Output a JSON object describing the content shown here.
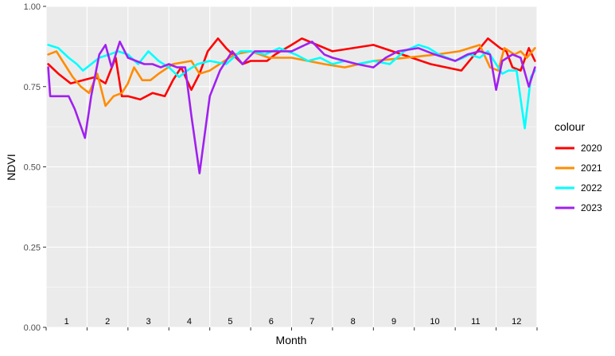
{
  "chart_data": {
    "type": "line",
    "xlabel": "Month",
    "ylabel": "NDVI",
    "ylim": [
      0,
      1
    ],
    "xlim": [
      0,
      12
    ],
    "y_ticks": [
      "0.00",
      "0.25",
      "0.50",
      "0.75",
      "1.00"
    ],
    "y_tick_values": [
      0,
      0.25,
      0.5,
      0.75,
      1.0
    ],
    "month_labels": [
      "1",
      "2",
      "3",
      "4",
      "5",
      "6",
      "7",
      "8",
      "9",
      "10",
      "11",
      "12"
    ],
    "grid": true,
    "legend": {
      "title": "colour",
      "position": "right"
    },
    "series": [
      {
        "name": "2020",
        "color": "#ff0000",
        "x": [
          0.05,
          0.3,
          0.6,
          0.9,
          1.2,
          1.45,
          1.7,
          1.85,
          2.0,
          2.3,
          2.6,
          2.9,
          3.1,
          3.3,
          3.55,
          3.75,
          3.95,
          4.2,
          4.4,
          4.8,
          5.0,
          5.4,
          5.6,
          6.0,
          6.25,
          7.0,
          8.0,
          8.7,
          9.4,
          10.15,
          10.8,
          11.1,
          11.25,
          11.4,
          11.6,
          11.8,
          11.95
        ],
        "y": [
          0.82,
          0.79,
          0.76,
          0.77,
          0.78,
          0.76,
          0.84,
          0.72,
          0.72,
          0.71,
          0.73,
          0.72,
          0.77,
          0.81,
          0.74,
          0.79,
          0.86,
          0.9,
          0.87,
          0.82,
          0.83,
          0.83,
          0.85,
          0.88,
          0.9,
          0.86,
          0.88,
          0.85,
          0.82,
          0.8,
          0.9,
          0.87,
          0.86,
          0.81,
          0.8,
          0.87,
          0.83
        ]
      },
      {
        "name": "2021",
        "color": "#ff8c00",
        "x": [
          0.05,
          0.25,
          0.45,
          0.65,
          0.85,
          1.05,
          1.25,
          1.45,
          1.65,
          1.85,
          2.0,
          2.15,
          2.35,
          2.55,
          2.75,
          3.1,
          3.55,
          3.75,
          4.0,
          4.6,
          5.0,
          5.45,
          6.0,
          6.8,
          7.3,
          8.0,
          8.8,
          9.55,
          10.1,
          10.6,
          10.85,
          11.05,
          11.2,
          11.45,
          11.6,
          11.75,
          11.95
        ],
        "y": [
          0.85,
          0.86,
          0.82,
          0.78,
          0.75,
          0.73,
          0.79,
          0.69,
          0.72,
          0.73,
          0.76,
          0.81,
          0.77,
          0.77,
          0.79,
          0.82,
          0.83,
          0.79,
          0.8,
          0.85,
          0.86,
          0.84,
          0.84,
          0.82,
          0.81,
          0.83,
          0.84,
          0.85,
          0.86,
          0.88,
          0.81,
          0.8,
          0.87,
          0.85,
          0.86,
          0.84,
          0.87
        ]
      },
      {
        "name": "2022",
        "color": "#00ffff",
        "x": [
          0.05,
          0.3,
          0.55,
          0.75,
          0.9,
          1.1,
          1.3,
          1.55,
          1.75,
          2.0,
          2.25,
          2.5,
          2.75,
          3.0,
          3.25,
          3.45,
          3.7,
          4.0,
          4.4,
          4.75,
          5.0,
          5.35,
          5.7,
          6.1,
          6.4,
          6.7,
          7.0,
          7.3,
          7.6,
          8.0,
          8.4,
          8.75,
          9.1,
          9.35,
          9.6,
          10.0,
          10.2,
          10.35,
          10.6,
          10.8,
          11.0,
          11.15,
          11.3,
          11.5,
          11.7,
          11.85,
          11.95
        ],
        "y": [
          0.88,
          0.87,
          0.84,
          0.82,
          0.8,
          0.82,
          0.84,
          0.85,
          0.86,
          0.85,
          0.82,
          0.86,
          0.83,
          0.81,
          0.78,
          0.8,
          0.82,
          0.83,
          0.82,
          0.86,
          0.86,
          0.85,
          0.87,
          0.85,
          0.83,
          0.84,
          0.82,
          0.83,
          0.82,
          0.83,
          0.82,
          0.86,
          0.88,
          0.87,
          0.85,
          0.83,
          0.84,
          0.85,
          0.84,
          0.86,
          0.82,
          0.79,
          0.8,
          0.8,
          0.62,
          0.78,
          0.8
        ]
      },
      {
        "name": "2023",
        "color": "#a020f0",
        "x": [
          0.05,
          0.1,
          0.3,
          0.55,
          0.7,
          0.95,
          1.1,
          1.3,
          1.45,
          1.6,
          1.8,
          2.0,
          2.2,
          2.4,
          2.6,
          2.8,
          3.0,
          3.2,
          3.4,
          3.55,
          3.75,
          4.0,
          4.25,
          4.55,
          4.8,
          5.1,
          5.5,
          6.0,
          6.5,
          6.8,
          7.0,
          7.3,
          7.6,
          8.0,
          8.3,
          8.6,
          9.1,
          9.5,
          10.0,
          10.3,
          10.6,
          10.85,
          11.0,
          11.15,
          11.4,
          11.6,
          11.8,
          11.95
        ],
        "y": [
          0.81,
          0.72,
          0.72,
          0.72,
          0.68,
          0.59,
          0.72,
          0.85,
          0.88,
          0.81,
          0.89,
          0.84,
          0.83,
          0.82,
          0.82,
          0.81,
          0.82,
          0.81,
          0.81,
          0.66,
          0.48,
          0.72,
          0.8,
          0.86,
          0.82,
          0.86,
          0.86,
          0.86,
          0.89,
          0.85,
          0.84,
          0.83,
          0.82,
          0.81,
          0.84,
          0.86,
          0.87,
          0.85,
          0.83,
          0.85,
          0.86,
          0.85,
          0.74,
          0.83,
          0.85,
          0.84,
          0.75,
          0.81
        ]
      }
    ]
  }
}
